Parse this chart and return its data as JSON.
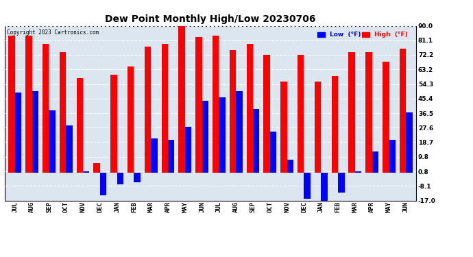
{
  "title": "Dew Point Monthly High/Low 20230706",
  "copyright": "Copyright 2023 Cartronics.com",
  "months": [
    "JUL",
    "AUG",
    "SEP",
    "OCT",
    "NOV",
    "DEC",
    "JAN",
    "FEB",
    "MAR",
    "APR",
    "MAY",
    "JUN",
    "JUL",
    "AUG",
    "SEP",
    "OCT",
    "NOV",
    "DEC",
    "JAN",
    "FEB",
    "MAR",
    "APR",
    "MAY",
    "JUN"
  ],
  "high": [
    84,
    84,
    79,
    74,
    58,
    6,
    60,
    65,
    77,
    79,
    91,
    83,
    84,
    75,
    79,
    72,
    56,
    72,
    56,
    59,
    74,
    74,
    68,
    76
  ],
  "low": [
    49,
    50,
    38,
    29,
    1,
    -14,
    -7,
    -6,
    21,
    20,
    28,
    44,
    46,
    50,
    39,
    25,
    8,
    -16,
    -17,
    -12,
    1,
    13,
    20,
    37
  ],
  "ylim_min": -17.0,
  "ylim_max": 90.0,
  "yticks": [
    90.0,
    81.1,
    72.2,
    63.2,
    54.3,
    45.4,
    36.5,
    27.6,
    18.7,
    9.8,
    0.8,
    -8.1,
    -17.0
  ],
  "bar_color_high": "#ff0000",
  "bar_color_low": "#0000ff",
  "background_color": "#ffffff",
  "plot_bg_color": "#dce6f0",
  "grid_color": "#ffffff",
  "title_fontsize": 10,
  "tick_fontsize": 6.5,
  "legend_low_color": "#0000ff",
  "legend_high_color": "#ff0000"
}
